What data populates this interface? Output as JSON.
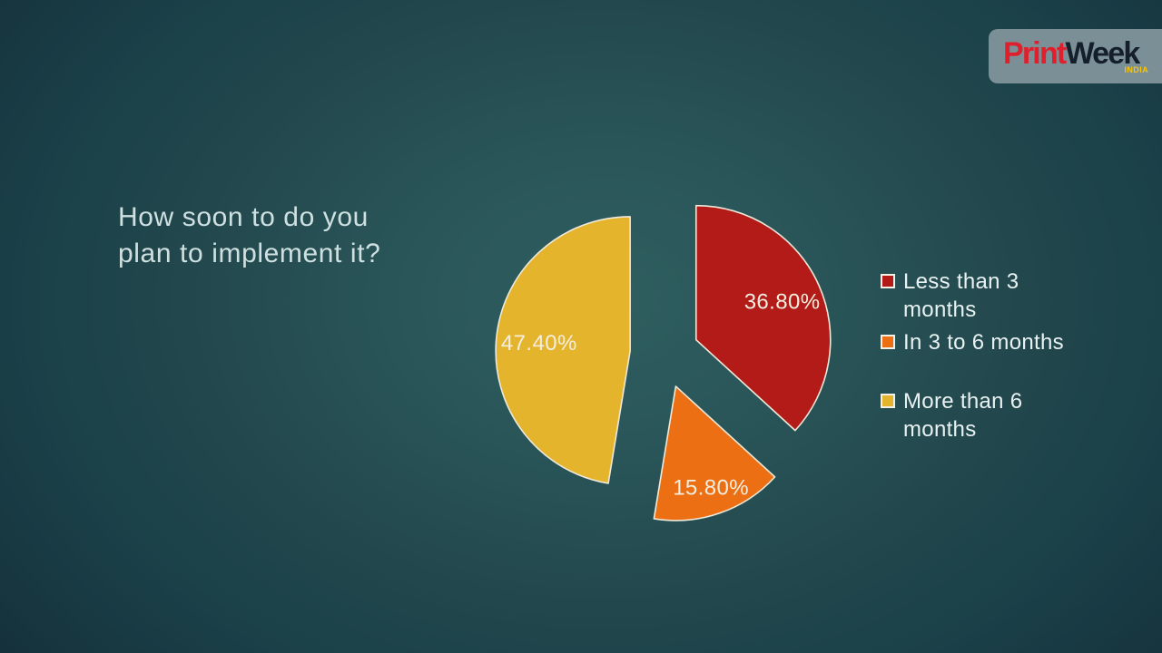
{
  "slide": {
    "title_lines": [
      "How soon to do you",
      "plan to implement it?"
    ],
    "background_center_color": "#2f5f60",
    "background_edge_color": "#102831",
    "title_color": "#cfe0e1"
  },
  "logo": {
    "part1": "Print",
    "part2": "Week",
    "country": "INDIA",
    "part1_color": "#e01f2d",
    "part2_color": "#141f2b",
    "country_color": "#f6c40e",
    "box_color": "#7b8f97"
  },
  "chart_data": {
    "type": "pie",
    "title": "How soon to do you plan to implement it?",
    "categories": [
      "Less than 3 months",
      "In 3 to 6 months",
      "More than 6 months"
    ],
    "values": [
      36.8,
      15.8,
      47.4
    ],
    "value_labels": [
      "36.80%",
      "15.80%",
      "47.40%"
    ],
    "colors": [
      "#b21b17",
      "#ed6f14",
      "#e5b42d"
    ],
    "slice_border_color": "#efe9da",
    "label_color": "#f3eee0",
    "start_angle_deg": 0,
    "direction": "clockwise",
    "exploded": true,
    "legend_position": "right",
    "legend_text_color": "#e9f2f2",
    "legend": [
      {
        "label": "Less than 3 months",
        "lines": [
          "Less than 3",
          "months"
        ]
      },
      {
        "label": "In 3 to 6 months",
        "lines": [
          "In 3 to 6 months"
        ]
      },
      {
        "label": "More than 6 months",
        "lines": [
          "More than 6",
          "months"
        ]
      }
    ]
  }
}
